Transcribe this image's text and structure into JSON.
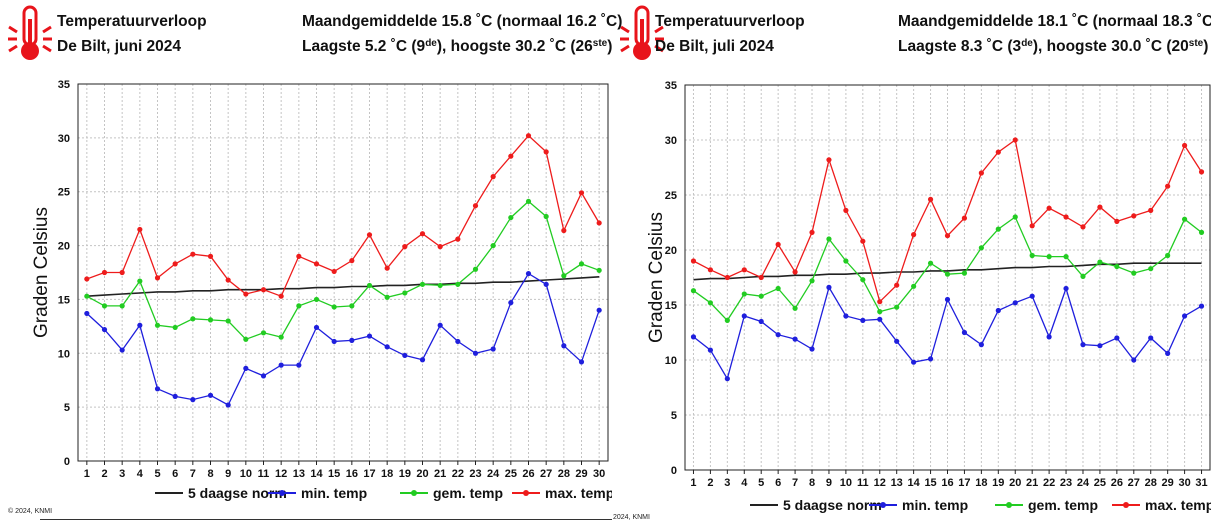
{
  "colors": {
    "norm": "#222222",
    "min": "#1f1fdd",
    "gem": "#22cc22",
    "max": "#ee1c1c"
  },
  "charts": [
    {
      "header": {
        "title": "Temperatuurverloop",
        "place": "De Bilt, juni 2024",
        "monthly": "Maandgemiddelde 15.8 ˚C (normaal 16.2 ˚C)",
        "ext_pre": "Laagste 5.2 ˚C (9",
        "ext_sup1": "de",
        "ext_mid": "), hoogste 30.2 ˚C (26",
        "ext_sup2": "ste",
        "ext_post": ")"
      },
      "credit": "© 2024, KNMI",
      "legend": {
        "norm": "5 daagse norm",
        "min": "min. temp",
        "gem": "gem. temp",
        "max": "max. temp"
      },
      "chart_data": {
        "type": "line",
        "title": "Temperatuurverloop De Bilt, juni 2024",
        "ylabel": "Graden Celsius",
        "xlabel": "",
        "ylim": [
          0,
          35
        ],
        "yticks": [
          0,
          5,
          10,
          15,
          20,
          25,
          30,
          35
        ],
        "grid": true,
        "legend_position": "bottom",
        "x": [
          1,
          2,
          3,
          4,
          5,
          6,
          7,
          8,
          9,
          10,
          11,
          12,
          13,
          14,
          15,
          16,
          17,
          18,
          19,
          20,
          21,
          22,
          23,
          24,
          25,
          26,
          27,
          28,
          29,
          30
        ],
        "series": [
          {
            "name": "5 daagse norm",
            "key": "norm",
            "values": [
              15.3,
              15.4,
              15.5,
              15.6,
              15.7,
              15.7,
              15.8,
              15.8,
              15.9,
              15.9,
              15.9,
              16.0,
              16.0,
              16.1,
              16.1,
              16.2,
              16.2,
              16.3,
              16.3,
              16.4,
              16.4,
              16.5,
              16.5,
              16.6,
              16.6,
              16.7,
              16.8,
              16.9,
              17.0,
              17.1
            ]
          },
          {
            "name": "min. temp",
            "key": "min",
            "values": [
              13.7,
              12.2,
              10.3,
              12.6,
              6.7,
              6.0,
              5.7,
              6.1,
              5.2,
              8.6,
              7.9,
              8.9,
              8.9,
              12.4,
              11.1,
              11.2,
              11.6,
              10.6,
              9.8,
              9.4,
              12.6,
              11.1,
              10.0,
              10.4,
              14.7,
              17.4,
              16.4,
              10.7,
              9.2,
              14.0
            ]
          },
          {
            "name": "gem. temp",
            "key": "gem",
            "values": [
              15.3,
              14.4,
              14.4,
              16.7,
              12.6,
              12.4,
              13.2,
              13.1,
              13.0,
              11.3,
              11.9,
              11.5,
              14.4,
              15.0,
              14.3,
              14.4,
              16.3,
              15.2,
              15.6,
              16.4,
              16.3,
              16.4,
              17.8,
              20.0,
              22.6,
              24.1,
              22.7,
              17.2,
              18.3,
              17.7
            ]
          },
          {
            "name": "max. temp",
            "key": "max",
            "values": [
              16.9,
              17.5,
              17.5,
              21.5,
              17.0,
              18.3,
              19.2,
              19.0,
              16.8,
              15.5,
              15.9,
              15.3,
              19.0,
              18.3,
              17.6,
              18.6,
              21.0,
              17.9,
              19.9,
              21.1,
              19.9,
              20.6,
              23.7,
              26.4,
              28.3,
              30.2,
              28.7,
              21.4,
              24.9,
              22.1
            ]
          }
        ]
      }
    },
    {
      "header": {
        "title": "Temperatuurverloop",
        "place": "De Bilt, juli 2024",
        "monthly": "Maandgemiddelde 18.1 ˚C (normaal 18.3 ˚C)",
        "ext_pre": "Laagste 8.3 ˚C (3",
        "ext_sup1": "de",
        "ext_mid": "), hoogste 30.0 ˚C (20",
        "ext_sup2": "ste",
        "ext_post": ")"
      },
      "credit": "2024, KNMI",
      "legend": {
        "norm": "5 daagse norm",
        "min": "min. temp",
        "gem": "gem. temp",
        "max": "max. temp"
      },
      "chart_data": {
        "type": "line",
        "title": "Temperatuurverloop De Bilt, juli 2024",
        "ylabel": "Graden Celsius",
        "xlabel": "",
        "ylim": [
          0,
          35
        ],
        "yticks": [
          0,
          5,
          10,
          15,
          20,
          25,
          30,
          35
        ],
        "grid": true,
        "legend_position": "bottom",
        "x": [
          1,
          2,
          3,
          4,
          5,
          6,
          7,
          8,
          9,
          10,
          11,
          12,
          13,
          14,
          15,
          16,
          17,
          18,
          19,
          20,
          21,
          22,
          23,
          24,
          25,
          26,
          27,
          28,
          29,
          30,
          31
        ],
        "series": [
          {
            "name": "5 daagse norm",
            "key": "norm",
            "values": [
              17.3,
              17.4,
              17.4,
              17.5,
              17.6,
              17.6,
              17.7,
              17.7,
              17.8,
              17.8,
              17.9,
              17.9,
              18.0,
              18.0,
              18.1,
              18.1,
              18.2,
              18.2,
              18.3,
              18.4,
              18.4,
              18.5,
              18.5,
              18.6,
              18.7,
              18.7,
              18.8,
              18.8,
              18.8,
              18.8,
              18.8
            ]
          },
          {
            "name": "min. temp",
            "key": "min",
            "values": [
              12.1,
              10.9,
              8.3,
              14.0,
              13.5,
              12.3,
              11.9,
              11.0,
              16.6,
              14.0,
              13.6,
              13.7,
              11.7,
              9.8,
              10.1,
              15.5,
              12.5,
              11.4,
              14.5,
              15.2,
              15.8,
              12.1,
              16.5,
              11.4,
              11.3,
              12.0,
              10.0,
              12.0,
              10.6,
              14.0,
              14.9
            ]
          },
          {
            "name": "gem. temp",
            "key": "gem",
            "values": [
              16.3,
              15.2,
              13.6,
              16.0,
              15.8,
              16.5,
              14.7,
              17.2,
              21.0,
              19.0,
              17.3,
              14.4,
              14.8,
              16.7,
              18.8,
              17.8,
              17.9,
              20.2,
              21.9,
              23.0,
              19.5,
              19.4,
              19.4,
              17.6,
              18.9,
              18.5,
              17.9,
              18.3,
              19.5,
              22.8,
              21.6
            ]
          },
          {
            "name": "max. temp",
            "key": "max",
            "values": [
              19.0,
              18.2,
              17.5,
              18.2,
              17.5,
              20.5,
              18.0,
              21.6,
              28.2,
              23.6,
              20.8,
              15.3,
              16.8,
              21.4,
              24.6,
              21.3,
              22.9,
              27.0,
              28.9,
              30.0,
              22.2,
              23.8,
              23.0,
              22.1,
              23.9,
              22.6,
              23.1,
              23.6,
              25.8,
              29.5,
              27.1
            ]
          }
        ]
      }
    }
  ]
}
